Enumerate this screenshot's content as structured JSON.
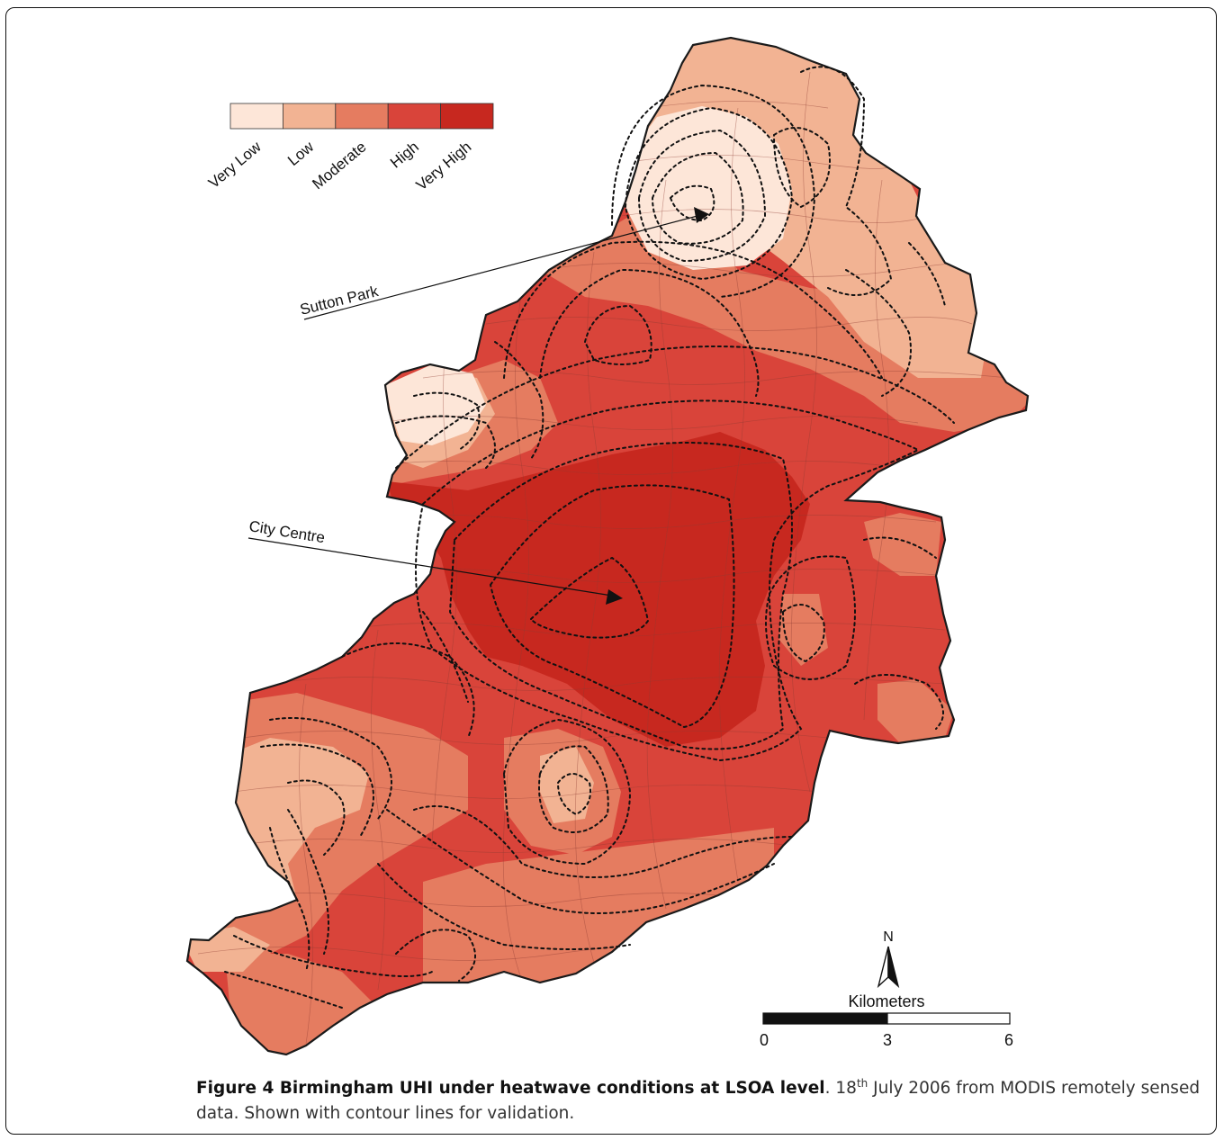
{
  "legend": {
    "classes": [
      {
        "label": "Very Low",
        "color": "#fde6d8"
      },
      {
        "label": "Low",
        "color": "#f2b393"
      },
      {
        "label": "Moderate",
        "color": "#e57c60"
      },
      {
        "label": "High",
        "color": "#d9443a"
      },
      {
        "label": "Very High",
        "color": "#c7281f"
      }
    ]
  },
  "annotations": {
    "sutton_park": "Sutton Park",
    "city_centre": "City Centre"
  },
  "north_arrow": {
    "label": "N"
  },
  "scale_bar": {
    "title": "Kilometers",
    "ticks": [
      "0",
      "3",
      "6"
    ]
  },
  "caption": {
    "bold": "Figure 4 Birmingham UHI under heatwave conditions at LSOA level",
    "day": "18",
    "ordinal": "th",
    "rest": " July 2006 from MODIS remotely sensed data. Shown with contour lines for validation."
  }
}
